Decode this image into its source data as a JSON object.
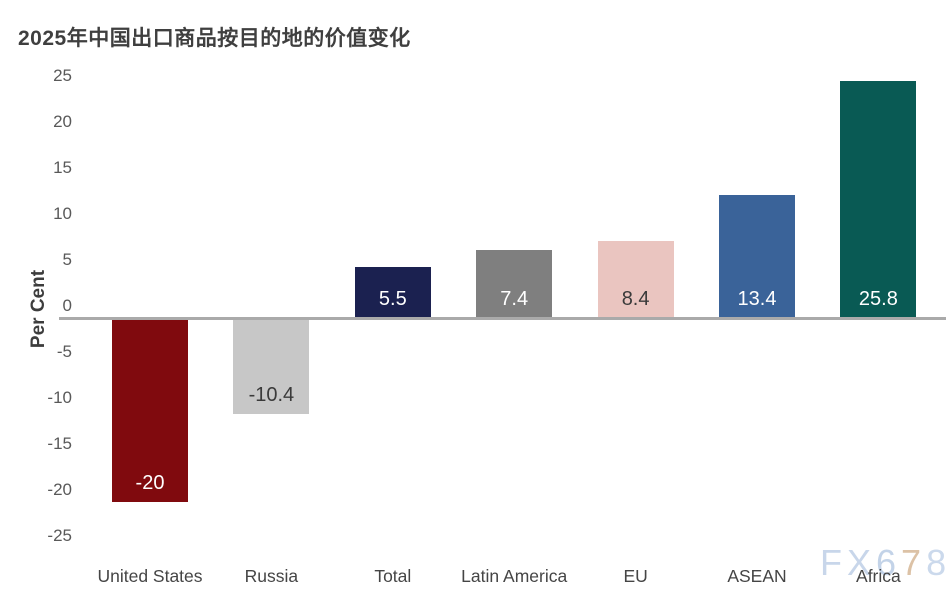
{
  "title": "2025年中国出口商品按目的地的价值变化",
  "watermark": {
    "text": "FX678",
    "letter_colors": [
      "#c8d6ea",
      "#c8d6ea",
      "#c3d3e8",
      "#dcc2a6",
      "#cbd9ec"
    ]
  },
  "chart_data": {
    "type": "bar",
    "title": "2025年中国出口商品按目的地的价值变化",
    "xlabel": "",
    "ylabel": "Per Cent",
    "ylim": [
      -25,
      25
    ],
    "ytick_step": 5,
    "yticks": [
      25,
      20,
      15,
      10,
      5,
      0,
      -5,
      -10,
      -15,
      -20,
      -25
    ],
    "grid": false,
    "legend": "none",
    "categories": [
      "United States",
      "Russia",
      "Total",
      "Latin America",
      "EU",
      "ASEAN",
      "Africa"
    ],
    "values": [
      -20,
      -10.4,
      5.5,
      7.4,
      8.4,
      13.4,
      25.8
    ],
    "value_labels": [
      "-20",
      "-10.4",
      "5.5",
      "7.4",
      "8.4",
      "13.4",
      "25.8"
    ],
    "bar_colors": [
      "#800a0e",
      "#c7c7c7",
      "#1b2150",
      "#7f7f7f",
      "#eac5c0",
      "#3a6399",
      "#095a54"
    ],
    "value_label_colors": [
      "#ffffff",
      "#3a3a3a",
      "#ffffff",
      "#ffffff",
      "#3a3a3a",
      "#ffffff",
      "#ffffff"
    ],
    "title_color": "#3f3f3f",
    "axis_title_color": "#3d3d3d",
    "tick_label_color": "#595959",
    "category_label_color": "#454545",
    "axis_line_color": "#aaaaaa"
  }
}
